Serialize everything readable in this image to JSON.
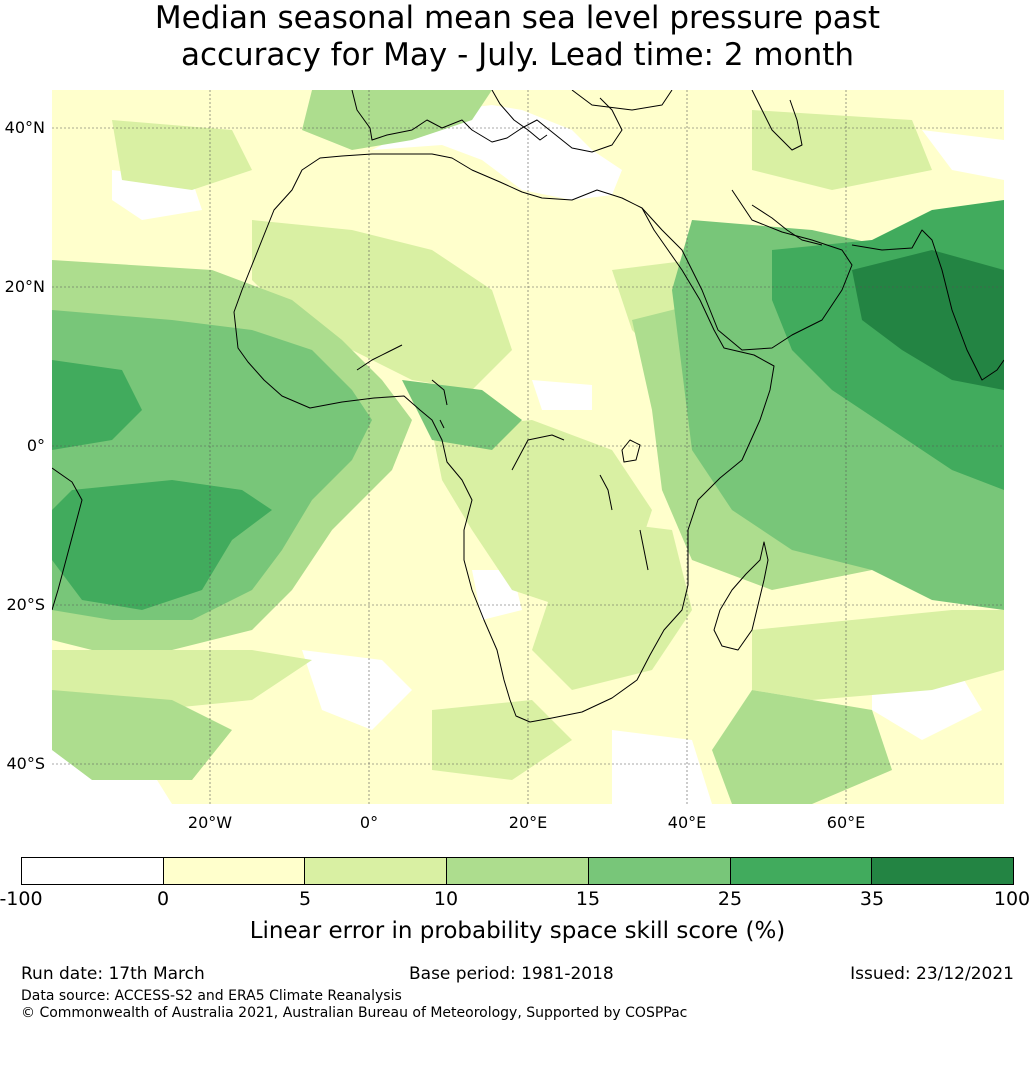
{
  "title": {
    "line1": "Median seasonal mean sea level pressure past",
    "line2": "accuracy for May - July. Lead time: 2 month"
  },
  "map": {
    "region": "Africa",
    "lat_labels": [
      "40°N",
      "20°N",
      "0°",
      "20°S",
      "40°S"
    ],
    "lon_labels": [
      "20°W",
      "0°",
      "20°E",
      "40°E",
      "60°E"
    ]
  },
  "colorbar": {
    "label": "Linear error in probability space skill score (%)",
    "ticks": [
      "-100",
      "0",
      "5",
      "10",
      "15",
      "25",
      "35",
      "100"
    ],
    "colors": [
      "#ffffff",
      "#ffffcc",
      "#d9f0a3",
      "#addd8e",
      "#78c679",
      "#41ab5d",
      "#238443"
    ]
  },
  "footer": {
    "run_date": "Run date: 17th March",
    "base_period": "Base period: 1981-2018",
    "issued": "Issued: 23/12/2021",
    "data_source": "Data source: ACCESS-S2 and ERA5 Climate Reanalysis",
    "copyright": "© Commonwealth of Australia 2021, Australian Bureau of Meteorology, Supported by COSPPac"
  }
}
